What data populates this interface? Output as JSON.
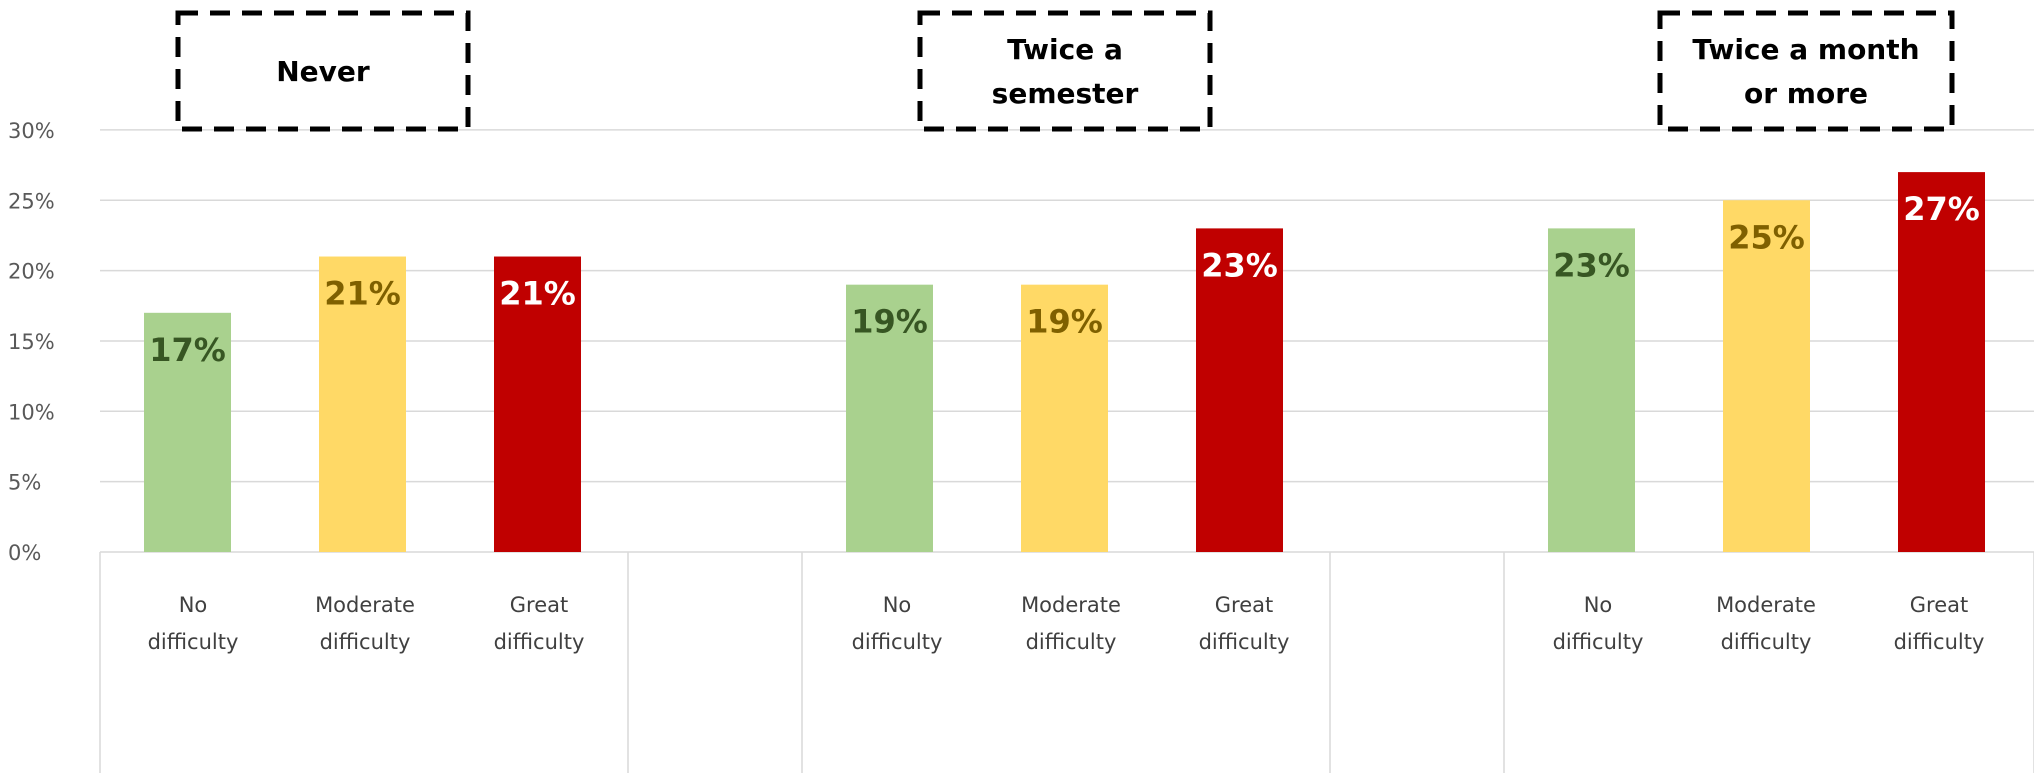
{
  "chart_data": {
    "type": "bar",
    "yticks": [
      "0%",
      "5%",
      "10%",
      "15%",
      "20%",
      "25%",
      "30%"
    ],
    "ylim": [
      0,
      30
    ],
    "grid": true,
    "groups": [
      {
        "title": [
          "Never"
        ],
        "categories": [
          [
            "No",
            "difficulty"
          ],
          [
            "Moderate",
            "difficulty"
          ],
          [
            "Great",
            "difficulty"
          ]
        ],
        "values": [
          17,
          21,
          21
        ],
        "labels": [
          "17%",
          "21%",
          "21%"
        ]
      },
      {
        "title": [
          "Twice a",
          "semester"
        ],
        "categories": [
          [
            "No",
            "difficulty"
          ],
          [
            "Moderate",
            "difficulty"
          ],
          [
            "Great",
            "difficulty"
          ]
        ],
        "values": [
          19,
          19,
          23
        ],
        "labels": [
          "19%",
          "19%",
          "23%"
        ]
      },
      {
        "title": [
          "Twice a month",
          "or more"
        ],
        "categories": [
          [
            "No",
            "difficulty"
          ],
          [
            "Moderate",
            "difficulty"
          ],
          [
            "Great",
            "difficulty"
          ]
        ],
        "values": [
          23,
          25,
          27
        ],
        "labels": [
          "23%",
          "25%",
          "27%"
        ]
      }
    ],
    "colors": {
      "bars": [
        "#a9d18e",
        "#ffd966",
        "#c00000"
      ],
      "labels": [
        "#375623",
        "#7f6000",
        "#ffffff"
      ],
      "grid": "#d9d9d9"
    }
  }
}
